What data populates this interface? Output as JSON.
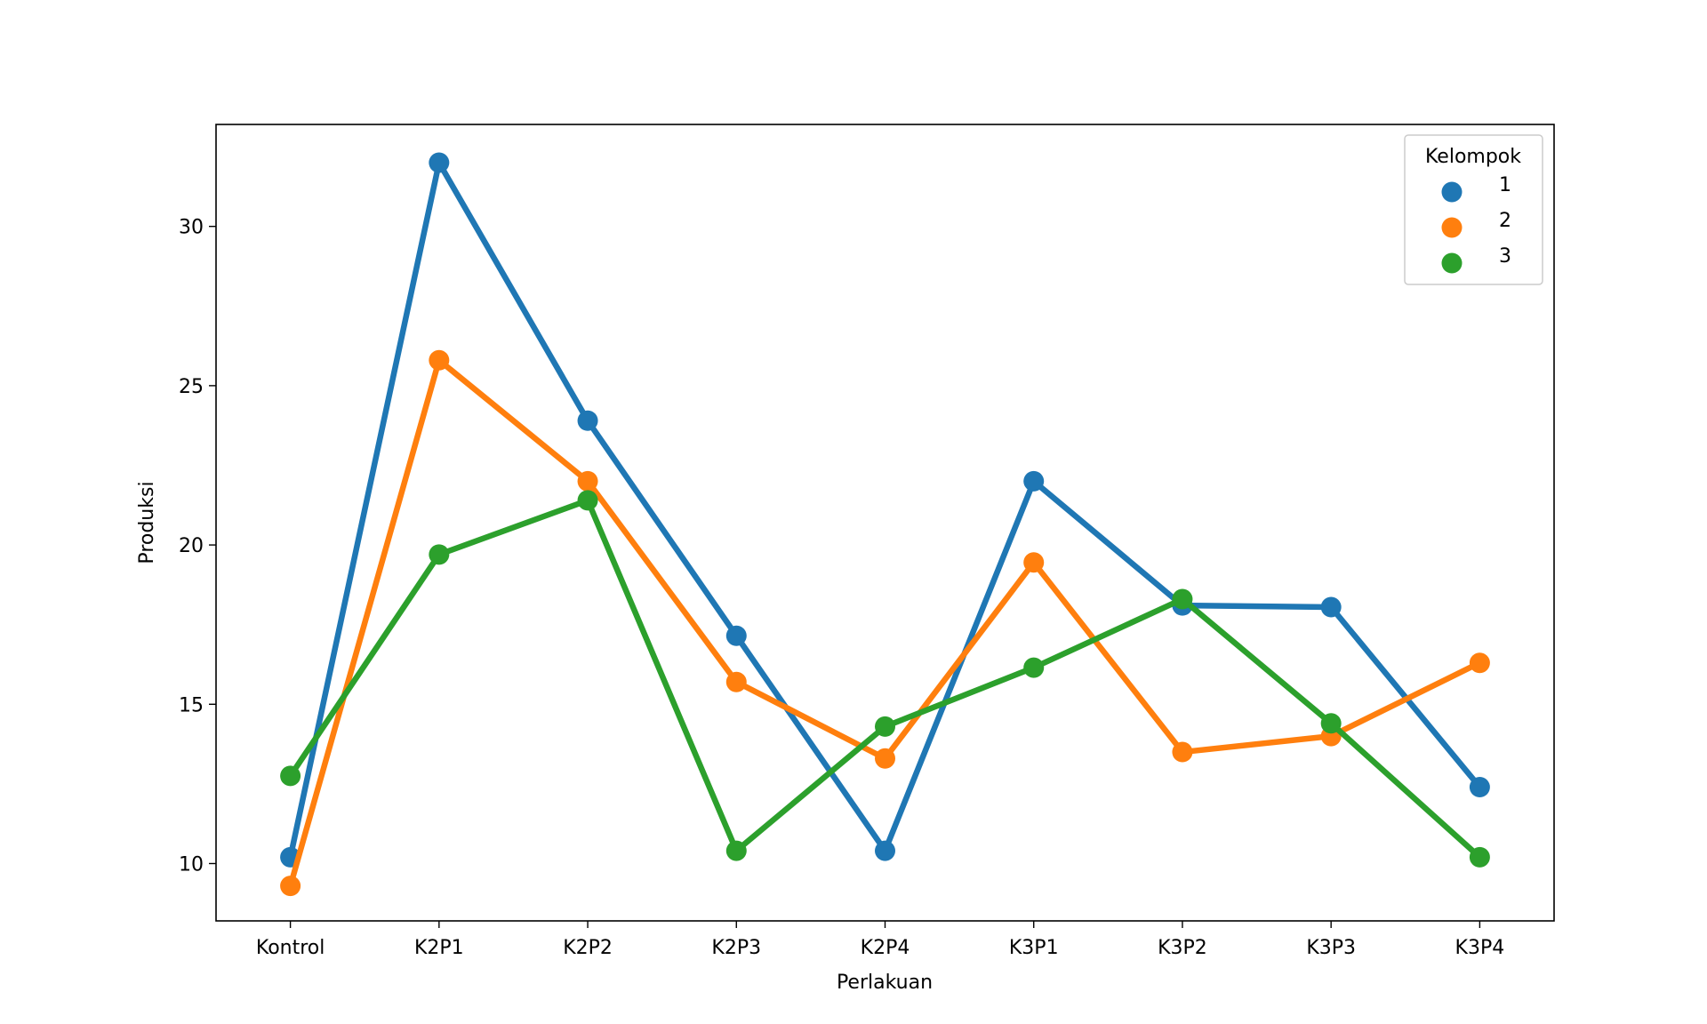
{
  "chart_data": {
    "type": "line",
    "categories": [
      "Kontrol",
      "K2P1",
      "K2P2",
      "K2P3",
      "K2P4",
      "K3P1",
      "K3P2",
      "K3P3",
      "K3P4"
    ],
    "xlabel": "Perlakuan",
    "ylabel": "Produksi",
    "ylim": [
      8.2,
      33.2
    ],
    "yticks": [
      10,
      15,
      20,
      25,
      30
    ],
    "grid": false,
    "legend": {
      "title": "Kelompok",
      "placement": "top-right"
    },
    "series": [
      {
        "name": "1",
        "color": "#1f77b4",
        "values": [
          10.2,
          32.0,
          23.9,
          17.15,
          10.4,
          22.0,
          18.1,
          18.05,
          12.4
        ]
      },
      {
        "name": "2",
        "color": "#ff7f0e",
        "values": [
          9.3,
          25.8,
          22.0,
          15.7,
          13.3,
          19.45,
          13.5,
          14.0,
          16.3
        ]
      },
      {
        "name": "3",
        "color": "#2ca02c",
        "values": [
          12.75,
          19.7,
          21.4,
          10.4,
          14.3,
          16.15,
          18.3,
          14.4,
          10.2
        ]
      }
    ]
  }
}
